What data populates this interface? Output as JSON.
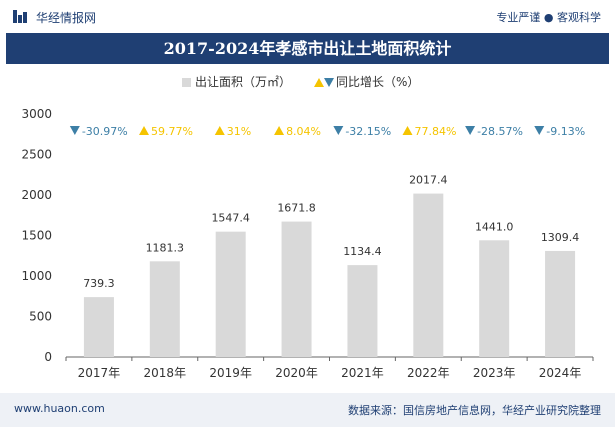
{
  "header": {
    "brand": "华经情报网",
    "tagline": "专业严谨 ● 客观科学"
  },
  "title": "2017-2024年孝感市出让土地面积统计",
  "legend": {
    "area_label": "出让面积（万㎡）",
    "growth_label": "同比增长（%）"
  },
  "footer": {
    "url": "www.huaon.com",
    "source": "数据来源：国信房地产信息网，华经产业研究院整理"
  },
  "colors": {
    "bar": "#d9d9d9",
    "up": "#f5c400",
    "down": "#3d7fa6",
    "brand": "#1f3f73"
  },
  "chart_data": {
    "type": "bar",
    "categories": [
      "2017年",
      "2018年",
      "2019年",
      "2020年",
      "2021年",
      "2022年",
      "2023年",
      "2024年"
    ],
    "series": [
      {
        "name": "出让面积（万㎡）",
        "values": [
          739.3,
          1181.3,
          1547.4,
          1671.8,
          1134.4,
          2017.4,
          1441.0,
          1309.4
        ],
        "labels": [
          "739.3",
          "1181.3",
          "1547.4",
          "1671.8",
          "1134.4",
          "2017.4",
          "1441.0",
          "1309.4"
        ]
      },
      {
        "name": "同比增长（%）",
        "values": [
          -30.97,
          59.77,
          31,
          8.04,
          -32.15,
          77.84,
          -28.57,
          -9.13
        ],
        "labels": [
          "-30.97%",
          "59.77%",
          "31%",
          "8.04%",
          "-32.15%",
          "77.84%",
          "-28.57%",
          "-9.13%"
        ]
      }
    ],
    "yticks": [
      "0",
      "500",
      "1000",
      "1500",
      "2000",
      "2500",
      "3000"
    ],
    "ylim": [
      0,
      3000
    ],
    "legend_position": "top-right"
  }
}
